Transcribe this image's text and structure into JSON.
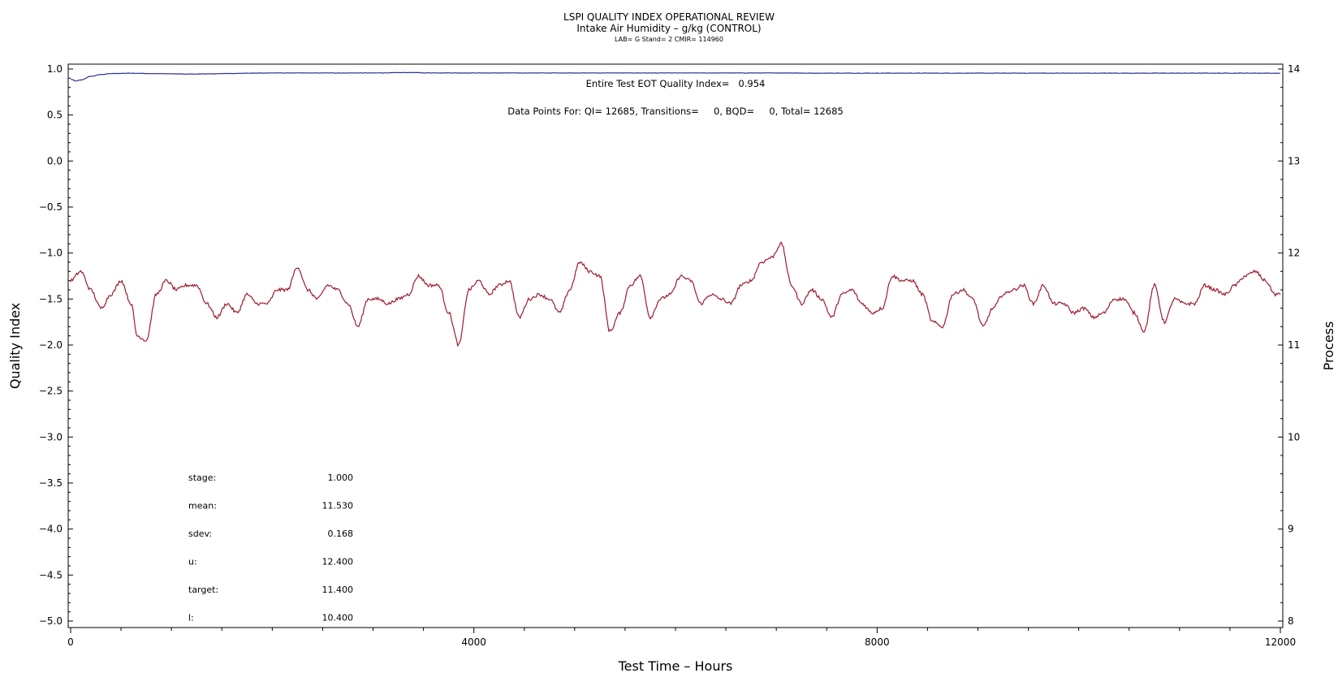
{
  "chart_data": {
    "type": "line",
    "title": "LSPI QUALITY INDEX OPERATIONAL REVIEW",
    "subtitle": "Intake Air Humidity – g/kg (CONTROL)",
    "subtitle2": "LAB= G Stand= 2 CMIR= 114960",
    "xlabel": "Test Time – Hours",
    "ylabel_left": "Quality Index",
    "ylabel_right": "Process",
    "xlim": [
      0,
      12000
    ],
    "ylim_left": [
      -5.0,
      1.0
    ],
    "ylim_right": [
      8,
      14
    ],
    "x_ticks": [
      "0",
      "4000",
      "8000",
      "12000"
    ],
    "y_left_ticks": [
      "1.0",
      "0.5",
      "0.0",
      "−0.5",
      "−1.0",
      "−1.5",
      "−2.0",
      "−2.5",
      "−3.0",
      "−3.5",
      "−4.0",
      "−4.5",
      "−5.0"
    ],
    "y_right_ticks": [
      "14",
      "13",
      "12",
      "11",
      "10",
      "9",
      "8"
    ],
    "annotations": {
      "eot": "Entire Test EOT Quality Index=   0.954",
      "points": "Data Points For: QI= 12685, Transitions=     0, BQD=     0, Total= 12685"
    },
    "stats": [
      {
        "label": "stage:",
        "value": "1.000"
      },
      {
        "label": "mean:",
        "value": "11.530"
      },
      {
        "label": "sdev:",
        "value": "0.168"
      },
      {
        "label": "u:",
        "value": "12.400"
      },
      {
        "label": "target:",
        "value": "11.400"
      },
      {
        "label": "l:",
        "value": "10.400"
      }
    ],
    "grid": false,
    "series": [
      {
        "axis": "left",
        "color": "#2a2f9a",
        "x": [
          0,
          50,
          100,
          200,
          300,
          400,
          600,
          800,
          1000,
          1200,
          1400,
          1600,
          1800,
          2000,
          3000,
          3400,
          3500,
          4000,
          5000,
          6000,
          7000,
          7200,
          7300,
          8000,
          9000,
          10000,
          11000,
          11500,
          11800,
          12000
        ],
        "values": [
          0.89,
          0.87,
          0.88,
          0.92,
          0.94,
          0.95,
          0.955,
          0.95,
          0.948,
          0.945,
          0.948,
          0.952,
          0.955,
          0.957,
          0.957,
          0.962,
          0.958,
          0.957,
          0.957,
          0.957,
          0.957,
          0.957,
          0.955,
          0.955,
          0.955,
          0.955,
          0.955,
          0.955,
          0.955,
          0.954
        ]
      },
      {
        "axis": "right",
        "color": "#a01a2e",
        "x": [
          0,
          100,
          200,
          300,
          400,
          500,
          600,
          660,
          750,
          850,
          950,
          1050,
          1150,
          1250,
          1350,
          1450,
          1550,
          1650,
          1750,
          1850,
          1950,
          2050,
          2150,
          2250,
          2350,
          2450,
          2550,
          2650,
          2750,
          2850,
          2950,
          3050,
          3150,
          3250,
          3350,
          3450,
          3550,
          3650,
          3750,
          3850,
          3950,
          4050,
          4150,
          4250,
          4350,
          4450,
          4550,
          4650,
          4750,
          4850,
          4950,
          5050,
          5150,
          5250,
          5350,
          5450,
          5550,
          5650,
          5750,
          5850,
          5950,
          6050,
          6150,
          6250,
          6350,
          6450,
          6550,
          6650,
          6750,
          6850,
          6950,
          7050,
          7150,
          7250,
          7350,
          7450,
          7550,
          7650,
          7750,
          7850,
          7950,
          8050,
          8150,
          8250,
          8350,
          8450,
          8550,
          8650,
          8750,
          8850,
          8950,
          9050,
          9150,
          9250,
          9350,
          9450,
          9550,
          9650,
          9750,
          9850,
          9950,
          10050,
          10150,
          10250,
          10350,
          10450,
          10550,
          10650,
          10750,
          10850,
          10950,
          11050,
          11150,
          11250,
          11350,
          11450,
          11550,
          11650,
          11750,
          11850,
          11950,
          12000
        ],
        "values": [
          11.7,
          11.8,
          11.6,
          11.4,
          11.55,
          11.7,
          11.45,
          11.1,
          11.05,
          11.55,
          11.7,
          11.6,
          11.65,
          11.65,
          11.45,
          11.3,
          11.45,
          11.35,
          11.55,
          11.45,
          11.45,
          11.6,
          11.6,
          11.85,
          11.6,
          11.5,
          11.65,
          11.6,
          11.45,
          11.2,
          11.5,
          11.5,
          11.45,
          11.5,
          11.55,
          11.75,
          11.65,
          11.65,
          11.35,
          11.0,
          11.6,
          11.7,
          11.55,
          11.65,
          11.7,
          11.3,
          11.5,
          11.55,
          11.5,
          11.35,
          11.6,
          11.9,
          11.8,
          11.75,
          11.15,
          11.35,
          11.65,
          11.75,
          11.3,
          11.5,
          11.55,
          11.75,
          11.7,
          11.45,
          11.55,
          11.5,
          11.45,
          11.65,
          11.7,
          11.9,
          11.95,
          12.1,
          11.65,
          11.45,
          11.6,
          11.5,
          11.3,
          11.55,
          11.6,
          11.45,
          11.35,
          11.4,
          11.75,
          11.7,
          11.7,
          11.55,
          11.25,
          11.2,
          11.55,
          11.6,
          11.5,
          11.2,
          11.4,
          11.55,
          11.6,
          11.65,
          11.45,
          11.65,
          11.45,
          11.45,
          11.35,
          11.4,
          11.3,
          11.35,
          11.5,
          11.5,
          11.35,
          11.15,
          11.65,
          11.25,
          11.5,
          11.45,
          11.45,
          11.65,
          11.6,
          11.55,
          11.65,
          11.75,
          11.8,
          11.7,
          11.55,
          11.55
        ]
      }
    ]
  }
}
